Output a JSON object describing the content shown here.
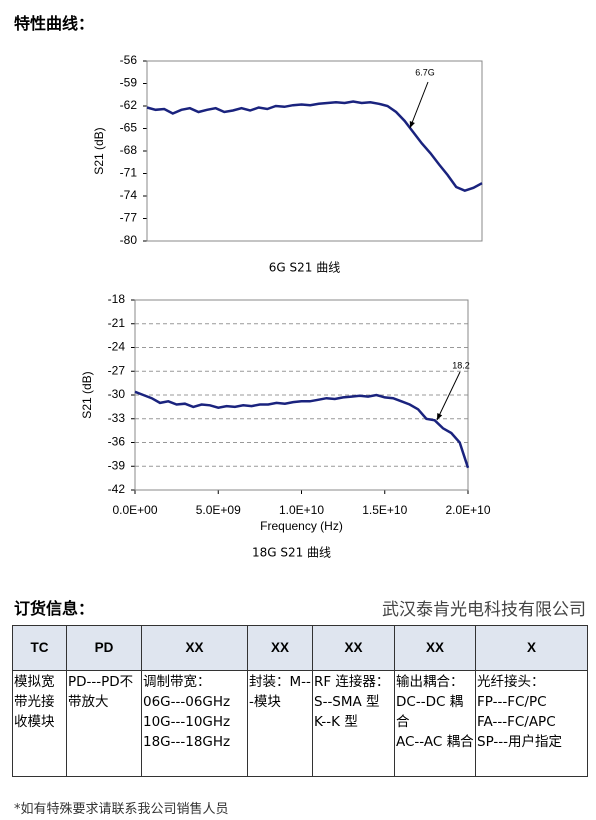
{
  "section_title": "特性曲线：",
  "chart_data": [
    {
      "type": "line",
      "title": "6G S21 曲线",
      "y_label": "S21 (dB)",
      "annotation": "6.7G",
      "color": "#1a237e",
      "grid": false,
      "categories": [
        null,
        null,
        null,
        null,
        null,
        null,
        null,
        null,
        null,
        null,
        null,
        null,
        null,
        null,
        null,
        null,
        null,
        null,
        null,
        null,
        null,
        null,
        null,
        null,
        null,
        null,
        null,
        null,
        null,
        null,
        null,
        null,
        null,
        null,
        null,
        null,
        null,
        null,
        null,
        null
      ],
      "values": [
        -62.2,
        -62.5,
        -62.4,
        -63.0,
        -62.5,
        -62.3,
        -62.8,
        -62.5,
        -62.3,
        -62.8,
        -62.6,
        -62.3,
        -62.6,
        -62.2,
        -62.4,
        -62.0,
        -62.1,
        -61.9,
        -61.8,
        -61.9,
        -61.7,
        -61.6,
        -61.5,
        -61.6,
        -61.4,
        -61.6,
        -61.5,
        -61.7,
        -62.0,
        -62.8,
        -64.0,
        -65.5,
        -67.0,
        -68.3,
        -69.8,
        -71.2,
        -72.8,
        -73.3,
        -72.9,
        -72.3
      ],
      "ylim": [
        -80,
        -56
      ],
      "yticks": [
        -56,
        -59,
        -62,
        -65,
        -68,
        -71,
        -74,
        -77,
        -80
      ]
    },
    {
      "type": "line",
      "title": "18G S21 曲线",
      "x_label": "Frequency (Hz)",
      "y_label": "S21 (dB)",
      "annotation": "18.2",
      "color": "#1a237e",
      "grid": true,
      "x": [
        0,
        500000000.0,
        1000000000.0,
        1500000000.0,
        2000000000.0,
        2500000000.0,
        3000000000.0,
        3500000000.0,
        4000000000.0,
        4500000000.0,
        5000000000.0,
        5500000000.0,
        6000000000.0,
        6500000000.0,
        7000000000.0,
        7500000000.0,
        8000000000.0,
        8500000000.0,
        9000000000.0,
        9500000000.0,
        10000000000.0,
        10500000000.0,
        11000000000.0,
        11500000000.0,
        12000000000.0,
        12500000000.0,
        13000000000.0,
        13500000000.0,
        14000000000.0,
        14500000000.0,
        15000000000.0,
        15500000000.0,
        16000000000.0,
        16500000000.0,
        17000000000.0,
        17500000000.0,
        18000000000.0,
        18500000000.0,
        19000000000.0,
        19500000000.0,
        20000000000.0
      ],
      "values": [
        -29.6,
        -30.0,
        -30.4,
        -31.0,
        -30.8,
        -31.2,
        -31.1,
        -31.5,
        -31.2,
        -31.3,
        -31.6,
        -31.4,
        -31.5,
        -31.3,
        -31.4,
        -31.2,
        -31.2,
        -31.0,
        -31.1,
        -30.9,
        -30.8,
        -30.8,
        -30.6,
        -30.4,
        -30.5,
        -30.3,
        -30.2,
        -30.1,
        -30.2,
        -30.0,
        -30.3,
        -30.4,
        -30.8,
        -31.2,
        -31.8,
        -33.0,
        -33.2,
        -34.2,
        -34.8,
        -36.0,
        -39.2
      ],
      "xlim": [
        0,
        20000000000.0
      ],
      "xticks": [
        {
          "value": 0,
          "label": "0.0E+00"
        },
        {
          "value": 5000000000.0,
          "label": "5.0E+09"
        },
        {
          "value": 10000000000.0,
          "label": "1.0E+10"
        },
        {
          "value": 15000000000.0,
          "label": "1.5E+10"
        },
        {
          "value": 20000000000.0,
          "label": "2.0E+10"
        }
      ],
      "ylim": [
        -42,
        -18
      ],
      "yticks": [
        -18,
        -21,
        -24,
        -27,
        -30,
        -33,
        -36,
        -39,
        -42
      ]
    }
  ],
  "order_title": "订货信息：",
  "company": "武汉泰肯光电科技有限公司",
  "table": {
    "header": [
      "TC",
      "PD",
      "XX",
      "XX",
      "XX",
      "XX",
      "X"
    ],
    "row": [
      [
        "模拟宽带光接收模块"
      ],
      [
        "PD---PD不带放大"
      ],
      [
        "调制带宽：",
        "06G---06GHz",
        "10G---10GHz",
        "18G---18GHz"
      ],
      [
        "封装：M---模块"
      ],
      [
        "RF 连接器：",
        "S--SMA 型",
        "K--K 型"
      ],
      [
        "输出耦合：",
        "DC--DC 耦合",
        "AC--AC 耦合"
      ],
      [
        "光纤接头：",
        "FP---FC/PC",
        "FA---FC/APC",
        "SP---用户指定"
      ]
    ]
  },
  "footnote": "*如有特殊要求请联系我公司销售人员"
}
